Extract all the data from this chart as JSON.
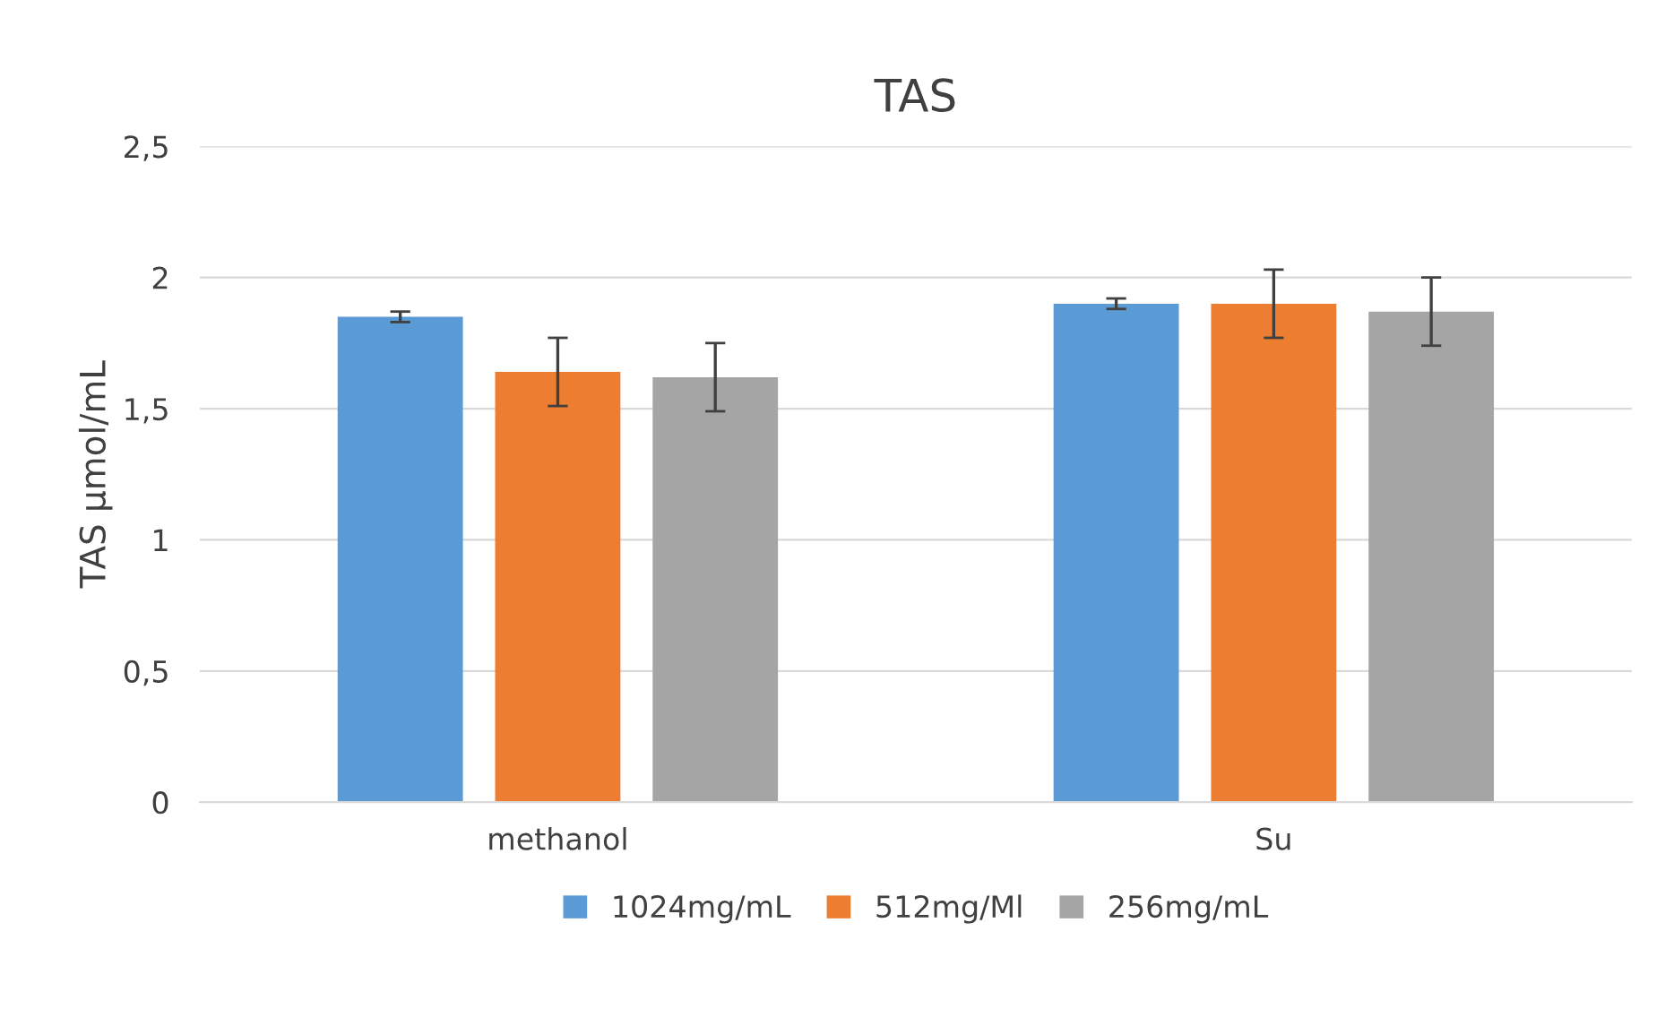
{
  "chart_data": {
    "type": "bar",
    "title": "TAS",
    "ylabel": "TAS µmol/mL",
    "categories": [
      "methanol",
      "Su"
    ],
    "series": [
      {
        "name": "1024mg/mL",
        "color": "#5b9bd5",
        "values": [
          1.85,
          1.9
        ],
        "errors": [
          0.02,
          0.02
        ]
      },
      {
        "name": "512mg/Ml",
        "color": "#ed7d31",
        "values": [
          1.64,
          1.9
        ],
        "errors": [
          0.13,
          0.13
        ]
      },
      {
        "name": "256mg/mL",
        "color": "#a5a5a5",
        "values": [
          1.62,
          1.87
        ],
        "errors": [
          0.13,
          0.13
        ]
      }
    ],
    "ylim": [
      0,
      2.5
    ],
    "yticks": [
      0,
      {
        "value": 0.5,
        "label": "0,5"
      },
      1,
      {
        "value": 1.5,
        "label": "1,5"
      },
      2,
      {
        "value": 2.5,
        "label": "2,5"
      }
    ],
    "grid": "y",
    "legend": "bottom"
  }
}
